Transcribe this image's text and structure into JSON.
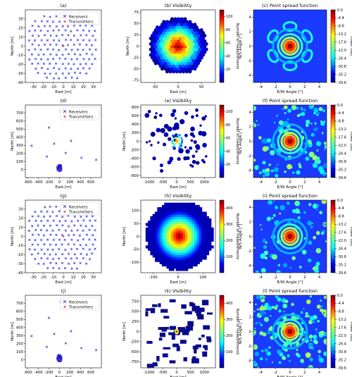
{
  "legend": {
    "receivers": "Receivers",
    "transmitters": "Transmitters"
  },
  "colors": {
    "receiver": "#1f1fd8",
    "transmitter": "#d62728"
  },
  "colorbar_labels": {
    "count": "Number of measurements",
    "power": "Power (dB)"
  },
  "chart_data": [
    {
      "id": "a",
      "type": "scatter",
      "title": "(a)",
      "xlabel": "East [m]",
      "ylabel": "North [m]",
      "xlim": [
        -38,
        38
      ],
      "ylim": [
        -40,
        40
      ],
      "xticks": [
        "-30",
        "-20",
        "-10",
        "0",
        "10",
        "20",
        "30"
      ],
      "xtick_values": [
        -30,
        -20,
        -10,
        0,
        10,
        20,
        30
      ],
      "yticks": [
        "-40",
        "-30",
        "-20",
        "-10",
        "0",
        "10",
        "20",
        "30"
      ],
      "ytick_values": [
        -40,
        -30,
        -20,
        -10,
        0,
        10,
        20,
        30
      ],
      "layout": "grid",
      "legend_position": "top-right"
    },
    {
      "id": "b",
      "type": "heatmap",
      "title": "(b) Visibility",
      "xlabel": "East [m]",
      "ylabel": "North [m]",
      "xlim": [
        -80,
        80
      ],
      "ylim": [
        -80,
        80
      ],
      "xticks": [
        "-50",
        "0",
        "50"
      ],
      "xtick_values": [
        -50,
        0,
        50
      ],
      "yticks": [
        "-75",
        "-50",
        "-25",
        "0",
        "25",
        "50",
        "75"
      ],
      "ytick_values": [
        -75,
        -50,
        -25,
        0,
        25,
        50,
        75
      ],
      "colorbar": {
        "label": "Number of measurements",
        "ticks": [
          "20",
          "40",
          "60",
          "80",
          "100"
        ],
        "range": [
          0,
          110
        ]
      },
      "pattern": "disc"
    },
    {
      "id": "c",
      "type": "heatmap",
      "title": "(c) Point spread function",
      "xlabel": "E/W Angle [°]",
      "ylabel": "N/S Angle [°]",
      "xlim": [
        -5,
        5
      ],
      "ylim": [
        -5,
        5
      ],
      "xticks": [
        "-4",
        "-2",
        "0",
        "2",
        "4"
      ],
      "xtick_values": [
        -4,
        -2,
        0,
        2,
        4
      ],
      "yticks": [
        "-4",
        "-2",
        "0",
        "2",
        "4"
      ],
      "ytick_values": [
        -4,
        -2,
        0,
        2,
        4
      ],
      "colorbar": {
        "label": "Power (dB)",
        "ticks": [
          "0.0",
          "-4.4",
          "-8.8",
          "-13.2",
          "-17.6",
          "-22.0",
          "-26.4",
          "-30.8",
          "-35.2",
          "-39.6"
        ]
      },
      "pattern": "psf-hex"
    },
    {
      "id": "d",
      "type": "scatter",
      "title": "(d)",
      "xlabel": "East [m]",
      "ylabel": "North [m]",
      "xlim": [
        -650,
        800
      ],
      "ylim": [
        -100,
        800
      ],
      "xticks": [
        "-600",
        "-400",
        "-200",
        "0",
        "200",
        "400",
        "600"
      ],
      "xtick_values": [
        -600,
        -400,
        -200,
        0,
        200,
        400,
        600
      ],
      "yticks": [
        "0",
        "100",
        "200",
        "300",
        "400",
        "500",
        "600",
        "700"
      ],
      "ytick_values": [
        0,
        100,
        200,
        300,
        400,
        500,
        600,
        700
      ],
      "layout": "cluster",
      "legend_position": "top-right"
    },
    {
      "id": "e",
      "type": "heatmap",
      "title": "(e) Visibility",
      "xlabel": "East [m]",
      "ylabel": "North [m]",
      "xlim": [
        -1300,
        1400
      ],
      "ylim": [
        -850,
        850
      ],
      "xticks": [
        "-1000",
        "-500",
        "0",
        "500",
        "1000"
      ],
      "xtick_values": [
        -1000,
        -500,
        0,
        500,
        1000
      ],
      "yticks": [
        "-800",
        "-600",
        "-400",
        "-200",
        "0",
        "200",
        "400",
        "600",
        "800"
      ],
      "ytick_values": [
        -800,
        -600,
        -400,
        -200,
        0,
        200,
        400,
        600,
        800
      ],
      "colorbar": {
        "label": "Number of measurements",
        "ticks": [
          "20",
          "40",
          "60",
          "80",
          "100"
        ],
        "range": [
          0,
          110
        ]
      },
      "pattern": "sparse"
    },
    {
      "id": "f",
      "type": "heatmap",
      "title": "(f) Point spread function",
      "xlabel": "E/W Angle [°]",
      "ylabel": "N/S Angle [°]",
      "xlim": [
        -5,
        5
      ],
      "ylim": [
        -5,
        5
      ],
      "xticks": [
        "-4",
        "-2",
        "0",
        "2",
        "4"
      ],
      "xtick_values": [
        -4,
        -2,
        0,
        2,
        4
      ],
      "yticks": [
        "-4",
        "-2",
        "0",
        "2",
        "4"
      ],
      "ytick_values": [
        -4,
        -2,
        0,
        2,
        4
      ],
      "colorbar": {
        "label": "Power (dB)",
        "ticks": [
          "0.0",
          "-4.4",
          "-8.8",
          "-13.2",
          "-17.6",
          "-22.0",
          "-26.4",
          "-30.8",
          "-35.2",
          "-39.6"
        ]
      },
      "pattern": "psf-noise"
    },
    {
      "id": "g",
      "type": "scatter",
      "title": "(g)",
      "xlabel": "East [m]",
      "ylabel": "North [m]",
      "xlim": [
        -38,
        38
      ],
      "ylim": [
        -40,
        40
      ],
      "xticks": [
        "-30",
        "-20",
        "-10",
        "0",
        "10",
        "20",
        "30"
      ],
      "xtick_values": [
        -30,
        -20,
        -10,
        0,
        10,
        20,
        30
      ],
      "yticks": [
        "-40",
        "-30",
        "-20",
        "-10",
        "0",
        "10",
        "20",
        "30"
      ],
      "ytick_values": [
        -40,
        -30,
        -20,
        -10,
        0,
        10,
        20,
        30
      ],
      "layout": "grid",
      "legend_position": "top-right"
    },
    {
      "id": "h",
      "type": "heatmap",
      "title": "(h) Visibility",
      "xlabel": "East [m]",
      "ylabel": "North [m]",
      "xlim": [
        -150,
        150
      ],
      "ylim": [
        -140,
        140
      ],
      "xticks": [
        "-100",
        "0",
        "100"
      ],
      "xtick_values": [
        -100,
        0,
        100
      ],
      "yticks": [
        "-100",
        "-50",
        "0",
        "50",
        "100"
      ],
      "ytick_values": [
        -100,
        -50,
        0,
        50,
        100
      ],
      "colorbar": {
        "label": "Number of measurements",
        "ticks": [
          "100",
          "200",
          "300",
          "400"
        ],
        "range": [
          0,
          450
        ]
      },
      "pattern": "dense"
    },
    {
      "id": "i",
      "type": "heatmap",
      "title": "(i) Point spread function",
      "xlabel": "E/W Angle [°]",
      "ylabel": "N/S Angle [°]",
      "xlim": [
        -5,
        5
      ],
      "ylim": [
        -5,
        5
      ],
      "xticks": [
        "-4",
        "-2",
        "0",
        "2",
        "4"
      ],
      "xtick_values": [
        -4,
        -2,
        0,
        2,
        4
      ],
      "yticks": [
        "-4",
        "-2",
        "0",
        "2",
        "4"
      ],
      "ytick_values": [
        -4,
        -2,
        0,
        2,
        4
      ],
      "colorbar": {
        "label": "Power (dB)",
        "ticks": [
          "0.0",
          "-4.4",
          "-8.8",
          "-13.2",
          "-17.6",
          "-22.0",
          "-26.4",
          "-30.8",
          "-35.2",
          "-39.6"
        ]
      },
      "pattern": "psf-blob"
    },
    {
      "id": "j",
      "type": "scatter",
      "title": "(j)",
      "xlabel": "East [m]",
      "ylabel": "North [m]",
      "xlim": [
        -650,
        800
      ],
      "ylim": [
        -100,
        800
      ],
      "xticks": [
        "-600",
        "-400",
        "-200",
        "0",
        "200",
        "400",
        "600"
      ],
      "xtick_values": [
        -600,
        -400,
        -200,
        0,
        200,
        400,
        600
      ],
      "yticks": [
        "0",
        "100",
        "200",
        "300",
        "400",
        "500",
        "600",
        "700"
      ],
      "ytick_values": [
        0,
        100,
        200,
        300,
        400,
        500,
        600,
        700
      ],
      "layout": "cluster",
      "legend_position": "top-right"
    },
    {
      "id": "k",
      "type": "heatmap",
      "title": "(k) Visibility",
      "xlabel": "East [m]",
      "ylabel": "North [m]",
      "xlim": [
        -1300,
        1400
      ],
      "ylim": [
        -900,
        900
      ],
      "xticks": [
        "-1000",
        "-500",
        "0",
        "500",
        "1000"
      ],
      "xtick_values": [
        -1000,
        -500,
        0,
        500,
        1000
      ],
      "yticks": [
        "-750",
        "-500",
        "-250",
        "0",
        "250",
        "500",
        "750"
      ],
      "ytick_values": [
        -750,
        -500,
        -250,
        0,
        250,
        500,
        750
      ],
      "colorbar": {
        "label": "Number of measurements",
        "ticks": [
          "100",
          "200",
          "300",
          "400"
        ],
        "range": [
          0,
          450
        ]
      },
      "pattern": "blocky"
    },
    {
      "id": "l",
      "type": "heatmap",
      "title": "(l) Point spread function",
      "xlabel": "E/W Angle [°]",
      "ylabel": "N/S Angle [°]",
      "xlim": [
        -5,
        5
      ],
      "ylim": [
        -5,
        5
      ],
      "xticks": [
        "-4",
        "-2",
        "0",
        "2",
        "4"
      ],
      "xtick_values": [
        -4,
        -2,
        0,
        2,
        4
      ],
      "yticks": [
        "-4",
        "-2",
        "0",
        "2",
        "4"
      ],
      "ytick_values": [
        -4,
        -2,
        0,
        2,
        4
      ],
      "colorbar": {
        "label": "Power (dB)",
        "ticks": [
          "0.0",
          "-4.4",
          "-8.8",
          "-13.2",
          "-17.6",
          "-22.0",
          "-26.4",
          "-30.8",
          "-35.2",
          "-39.6"
        ]
      },
      "pattern": "psf-dense"
    }
  ]
}
